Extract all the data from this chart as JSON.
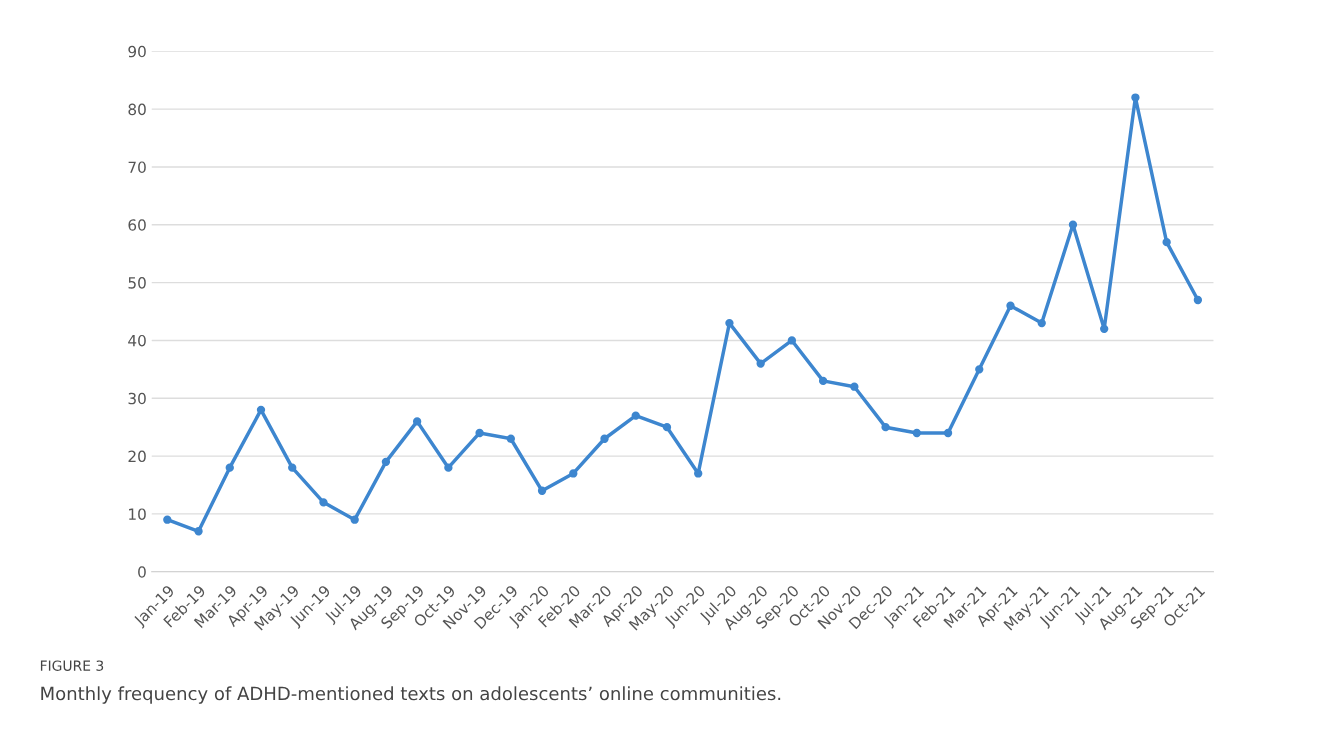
{
  "chart_data": {
    "type": "line",
    "categories": [
      "Jan-19",
      "Feb-19",
      "Mar-19",
      "Apr-19",
      "May-19",
      "Jun-19",
      "Jul-19",
      "Aug-19",
      "Sep-19",
      "Oct-19",
      "Nov-19",
      "Dec-19",
      "Jan-20",
      "Feb-20",
      "Mar-20",
      "Apr-20",
      "May-20",
      "Jun-20",
      "Jul-20",
      "Aug-20",
      "Sep-20",
      "Oct-20",
      "Nov-20",
      "Dec-20",
      "Jan-21",
      "Feb-21",
      "Mar-21",
      "Apr-21",
      "May-21",
      "Jun-21",
      "Jul-21",
      "Aug-21",
      "Sep-21",
      "Oct-21"
    ],
    "series": [
      {
        "color": "#3d86cf",
        "values": [
          9,
          7,
          18,
          28,
          18,
          12,
          9,
          19,
          26,
          18,
          24,
          23,
          14,
          17,
          23,
          27,
          25,
          17,
          43,
          36,
          40,
          33,
          32,
          25,
          24,
          24,
          35,
          46,
          43,
          60,
          42,
          82,
          57,
          47
        ]
      }
    ],
    "ylim": [
      0,
      90
    ],
    "yticks": [
      0,
      10,
      20,
      30,
      40,
      50,
      60,
      70,
      80,
      90
    ],
    "grid": "y",
    "marker": "circle",
    "line_style": "solid",
    "annotations": [
      "FIGURE 3",
      "Monthly frequency of ADHD-mentioned texts on adolescents’ online communities."
    ]
  }
}
